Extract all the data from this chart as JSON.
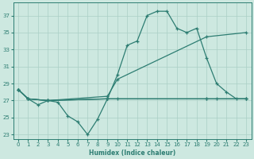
{
  "xlabel": "Humidex (Indice chaleur)",
  "bg_color": "#cde8e0",
  "grid_color": "#aacfc6",
  "line_color": "#2d7d72",
  "ylim": [
    22.5,
    38.5
  ],
  "xlim": [
    -0.5,
    23.5
  ],
  "yticks": [
    23,
    25,
    27,
    29,
    31,
    33,
    35,
    37
  ],
  "xticks": [
    0,
    1,
    2,
    3,
    4,
    5,
    6,
    7,
    8,
    9,
    10,
    11,
    12,
    13,
    14,
    15,
    16,
    17,
    18,
    19,
    20,
    21,
    22,
    23
  ],
  "line_jagged_x": [
    0,
    1,
    2,
    3,
    4,
    5,
    6,
    7,
    8,
    9,
    19,
    23
  ],
  "line_jagged_y": [
    28.3,
    27.2,
    26.5,
    27.0,
    26.8,
    25.2,
    24.5,
    23.0,
    24.8,
    27.2,
    27.2,
    27.2
  ],
  "line_peak_x": [
    0,
    1,
    3,
    9,
    10,
    11,
    12,
    13,
    14,
    15,
    16,
    17,
    18,
    19,
    20,
    21,
    22,
    23
  ],
  "line_peak_y": [
    28.3,
    27.2,
    27.0,
    27.2,
    30.0,
    33.5,
    34.0,
    37.0,
    37.5,
    37.5,
    35.5,
    35.0,
    35.5,
    32.0,
    29.0,
    28.0,
    27.2,
    27.2
  ],
  "line_diag1_x": [
    0,
    1,
    3,
    9,
    10,
    19,
    23
  ],
  "line_diag1_y": [
    28.3,
    27.2,
    27.0,
    27.5,
    29.5,
    34.5,
    35.0
  ],
  "line_diag2_x": [
    0,
    1,
    3,
    9,
    10,
    19,
    20,
    23
  ],
  "line_diag2_y": [
    28.3,
    27.2,
    27.0,
    27.2,
    27.2,
    27.2,
    27.2,
    27.2
  ]
}
